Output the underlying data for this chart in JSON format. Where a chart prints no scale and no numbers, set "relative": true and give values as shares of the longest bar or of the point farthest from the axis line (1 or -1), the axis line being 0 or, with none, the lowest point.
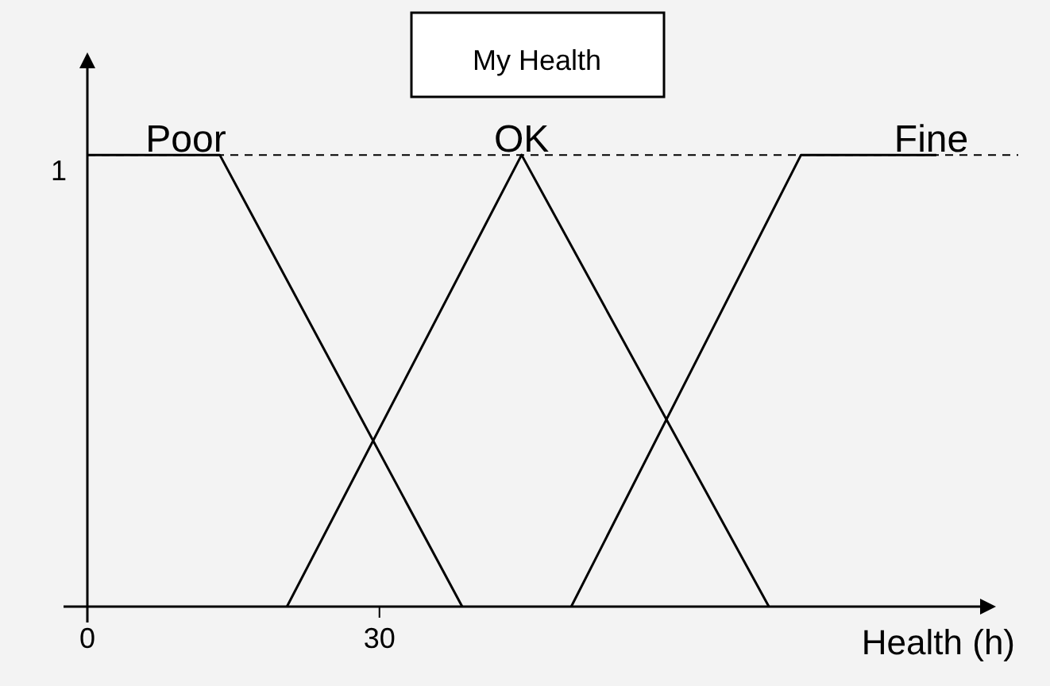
{
  "chart_data": {
    "type": "line",
    "title": "My Health",
    "xlabel": "Health (h)",
    "relative": true,
    "xlim": [
      0,
      93
    ],
    "xticks": [
      0,
      30
    ],
    "series": [
      {
        "name": "Poor",
        "color": "#000000",
        "x": [
          0,
          13.6,
          38.5
        ],
        "values": [
          1,
          1,
          0
        ]
      },
      {
        "name": "OK",
        "color": "#000000",
        "x": [
          20.5,
          44.6,
          70
        ],
        "values": [
          0,
          1,
          0
        ]
      },
      {
        "name": "Fine",
        "color": "#000000",
        "x": [
          49.7,
          73.3,
          87.2
        ],
        "values": [
          0,
          1,
          1
        ]
      }
    ],
    "ref_lines": [
      {
        "axis": "y",
        "value": 1,
        "label": "1",
        "line_style": "dashed",
        "color": "#000000"
      }
    ],
    "grid": false,
    "legend": false,
    "marker": "none",
    "line_style": "solid"
  }
}
